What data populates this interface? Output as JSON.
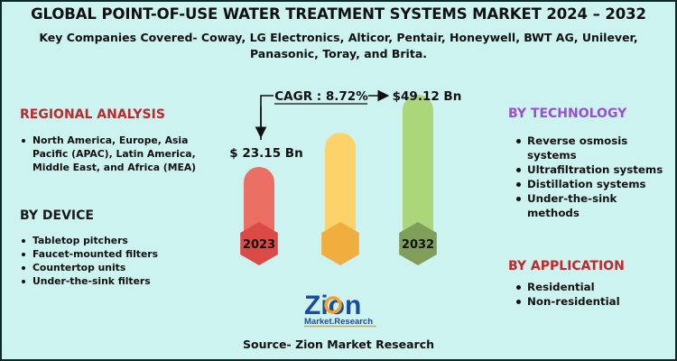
{
  "title": "GLOBAL POINT-OF-USE WATER TREATMENT SYSTEMS MARKET 2024 – 2032",
  "subtitle": "Key Companies Covered- Coway, LG Electronics, Alticor, Pentair, Honeywell, BWT AG, Unilever, Panasonic, Toray, and Brita.",
  "regional": {
    "heading": "REGIONAL ANALYSIS",
    "items": [
      "North America, Europe, Asia Pacific (APAC), Latin America, Middle East, and Africa (MEA)"
    ]
  },
  "device": {
    "heading": "BY DEVICE",
    "items": [
      "Tabletop pitchers",
      "Faucet-mounted filters",
      "Countertop units",
      "Under-the-sink filters"
    ]
  },
  "technology": {
    "heading": "BY TECHNOLOGY",
    "items": [
      "Reverse osmosis systems",
      "Ultrafiltration systems",
      "Distillation systems",
      "Under-the-sink methods"
    ]
  },
  "application": {
    "heading": "BY APPLICATION",
    "items": [
      "Residential",
      "Non-residential"
    ]
  },
  "logo": {
    "main": "Zion",
    "sub": "Market.Research"
  },
  "source": "Source- Zion Market Research",
  "colors": {
    "bar1": "#ec6f63",
    "bar2": "#fcd36b",
    "bar3": "#acd67a",
    "base1": "#dc4a45",
    "base2": "#efae3e",
    "base3": "#7f9e5a"
  },
  "chart_data": {
    "type": "bar",
    "categories": [
      "2023",
      "",
      "2032"
    ],
    "series": [
      {
        "values": [
          23.15,
          null,
          49.12
        ],
        "labels": [
          "$ 23.15 Bn",
          "",
          "$49.12 Bn"
        ]
      }
    ],
    "cagr_label": "CAGR : 8.72%"
  }
}
